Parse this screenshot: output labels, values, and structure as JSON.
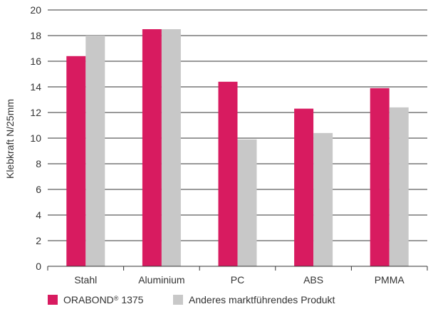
{
  "chart_data": {
    "type": "bar",
    "ylabel": "Klebkraft N/25mm",
    "xlabel": "",
    "ylim": [
      0,
      20
    ],
    "yticks": [
      0,
      2,
      4,
      6,
      8,
      10,
      12,
      14,
      16,
      18,
      20
    ],
    "grid": true,
    "legend_position": "bottom",
    "categories": [
      "Stahl",
      "Aluminium",
      "PC",
      "ABS",
      "PMMA"
    ],
    "series": [
      {
        "name": "ORABOND",
        "name_sup": "®",
        "name_suffix": " 1375",
        "color": "#d81b60",
        "values": [
          16.4,
          18.5,
          14.4,
          12.3,
          13.9
        ]
      },
      {
        "name": "Anderes marktführendes Produkt",
        "name_sup": "",
        "name_suffix": "",
        "color": "#c8c8c8",
        "values": [
          18.0,
          18.5,
          9.9,
          10.4,
          12.4
        ]
      }
    ]
  }
}
